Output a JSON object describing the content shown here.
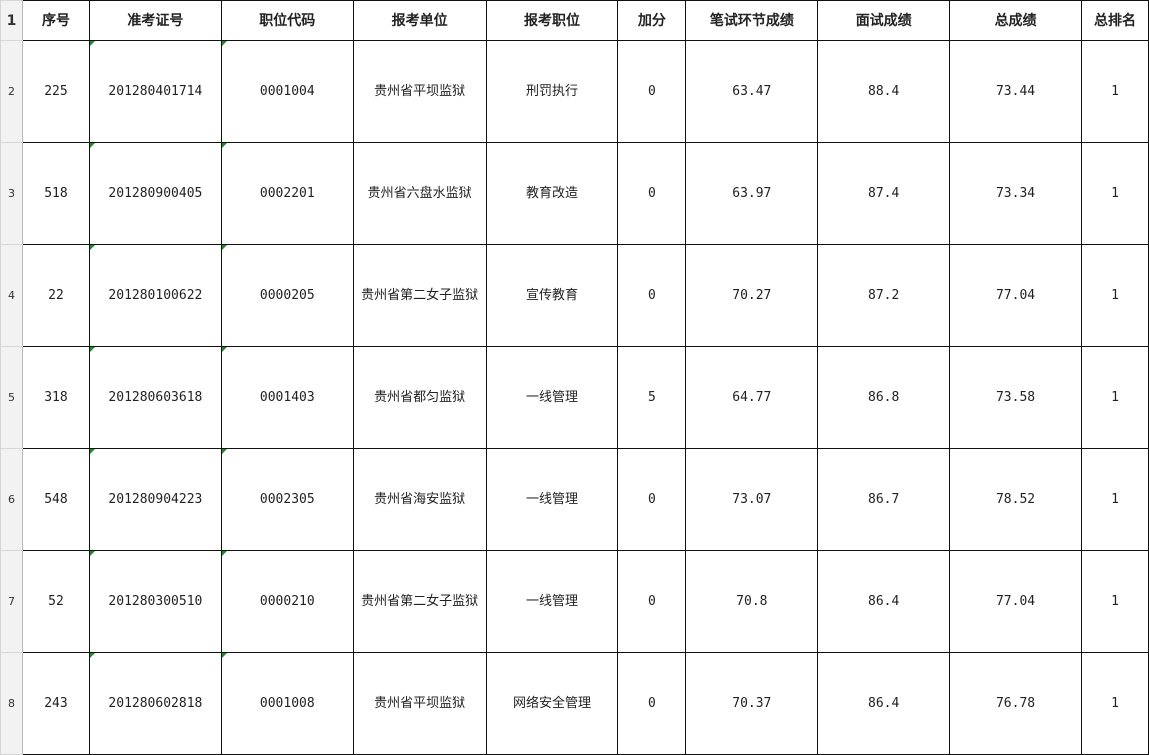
{
  "headers": [
    "序号",
    "准考证号",
    "职位代码",
    "报考单位",
    "报考职位",
    "加分",
    "笔试环节成绩",
    "面试成绩",
    "总成绩",
    "总排名"
  ],
  "row_numbers": [
    "1",
    "2",
    "3",
    "4",
    "5",
    "6",
    "7",
    "8"
  ],
  "rows": [
    [
      "225",
      "201280401714",
      "0001004",
      "贵州省平坝监狱",
      "刑罚执行",
      "0",
      "63.47",
      "88.4",
      "73.44",
      "1"
    ],
    [
      "518",
      "201280900405",
      "0002201",
      "贵州省六盘水监狱",
      "教育改造",
      "0",
      "63.97",
      "87.4",
      "73.34",
      "1"
    ],
    [
      "22",
      "201280100622",
      "0000205",
      "贵州省第二女子监狱",
      "宣传教育",
      "0",
      "70.27",
      "87.2",
      "77.04",
      "1"
    ],
    [
      "318",
      "201280603618",
      "0001403",
      "贵州省都匀监狱",
      "一线管理",
      "5",
      "64.77",
      "86.8",
      "73.58",
      "1"
    ],
    [
      "548",
      "201280904223",
      "0002305",
      "贵州省海安监狱",
      "一线管理",
      "0",
      "73.07",
      "86.7",
      "78.52",
      "1"
    ],
    [
      "52",
      "201280300510",
      "0000210",
      "贵州省第二女子监狱",
      "一线管理",
      "0",
      "70.8",
      "86.4",
      "77.04",
      "1"
    ],
    [
      "243",
      "201280602818",
      "0001008",
      "贵州省平坝监狱",
      "网络安全管理",
      "0",
      "70.37",
      "86.4",
      "76.78",
      "1"
    ]
  ],
  "colors": {
    "grid": "#111111",
    "row_header_bg": "#f2f2f2",
    "text_indicator": "#1e8a2e"
  }
}
